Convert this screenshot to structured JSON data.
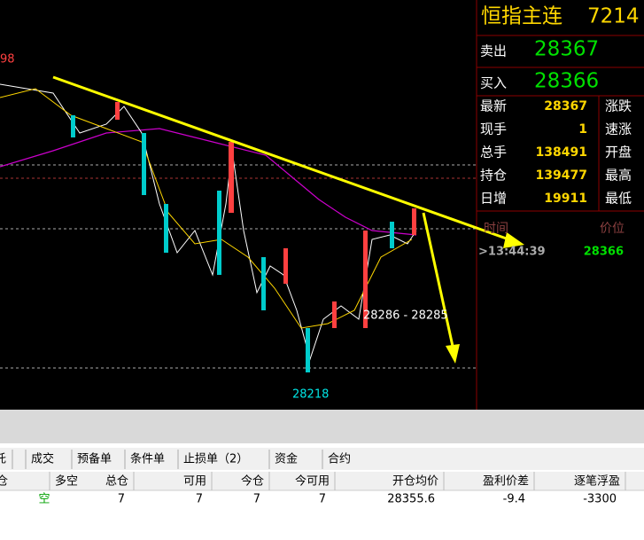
{
  "chart": {
    "high_label": "98",
    "range_label": "28286 - 28285",
    "low_label": "28218"
  },
  "quote": {
    "name": "恒指主连",
    "code": "7214",
    "sell_label": "卖出",
    "sell": "28367",
    "buy_label": "买入",
    "buy": "28366",
    "rows": [
      [
        "最新",
        "28367",
        "涨跌"
      ],
      [
        "现手",
        "1",
        "速涨"
      ],
      [
        "总手",
        "138491",
        "开盘"
      ],
      [
        "持仓",
        "139477",
        "最高"
      ],
      [
        "日增",
        "19911",
        "最低"
      ]
    ],
    "tick_header": [
      "时间",
      "价位"
    ],
    "tick": [
      ">13:44:39",
      "28366"
    ]
  },
  "tabs": [
    "托",
    "成交",
    "预备单",
    "条件单",
    "止损单（2）",
    "资金",
    "合约"
  ],
  "table": {
    "header": [
      "仓",
      "多空",
      "总仓",
      "可用",
      "今仓",
      "今可用",
      "开仓均价",
      "盈利价差",
      "逐笔浮盈"
    ],
    "rows": [
      [
        "",
        "空",
        "7",
        "7",
        "7",
        "7",
        "28355.6",
        "-9.4",
        "-3300"
      ]
    ]
  }
}
